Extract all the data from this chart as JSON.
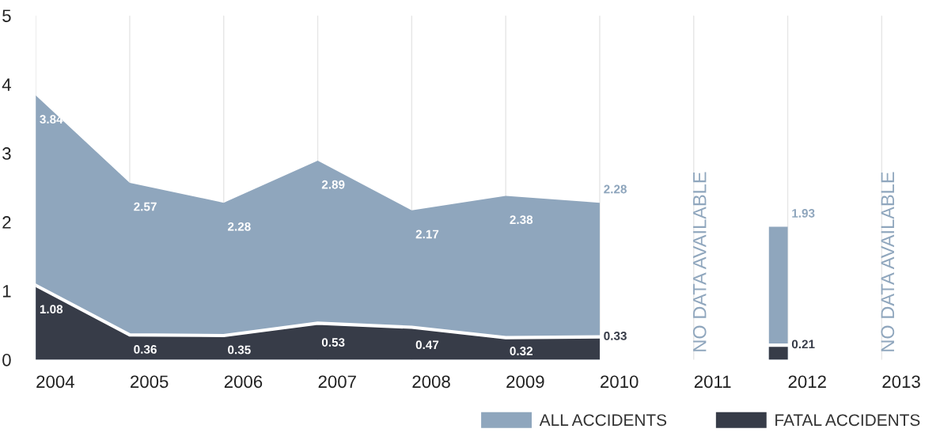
{
  "chart_data": {
    "type": "area",
    "categories": [
      "2004",
      "2005",
      "2006",
      "2007",
      "2008",
      "2009",
      "2010",
      "2011",
      "2012",
      "2013"
    ],
    "series": [
      {
        "name": "ALL ACCIDENTS",
        "color": "#8fa6bd",
        "values": [
          3.84,
          2.57,
          2.28,
          2.89,
          2.17,
          2.38,
          2.28,
          null,
          1.93,
          null
        ]
      },
      {
        "name": "FATAL ACCIDENTS",
        "color": "#373c48",
        "values": [
          1.08,
          0.36,
          0.35,
          0.53,
          0.47,
          0.32,
          0.33,
          null,
          0.21,
          null
        ]
      }
    ],
    "ylim": [
      0,
      5
    ],
    "yticks": [
      0,
      1,
      2,
      3,
      4,
      5
    ],
    "grid": "x",
    "legend": "bottom right",
    "data_labels": true,
    "annotations": [
      "NO DATA AVAILABLE",
      "NO DATA AVAILABLE"
    ]
  }
}
